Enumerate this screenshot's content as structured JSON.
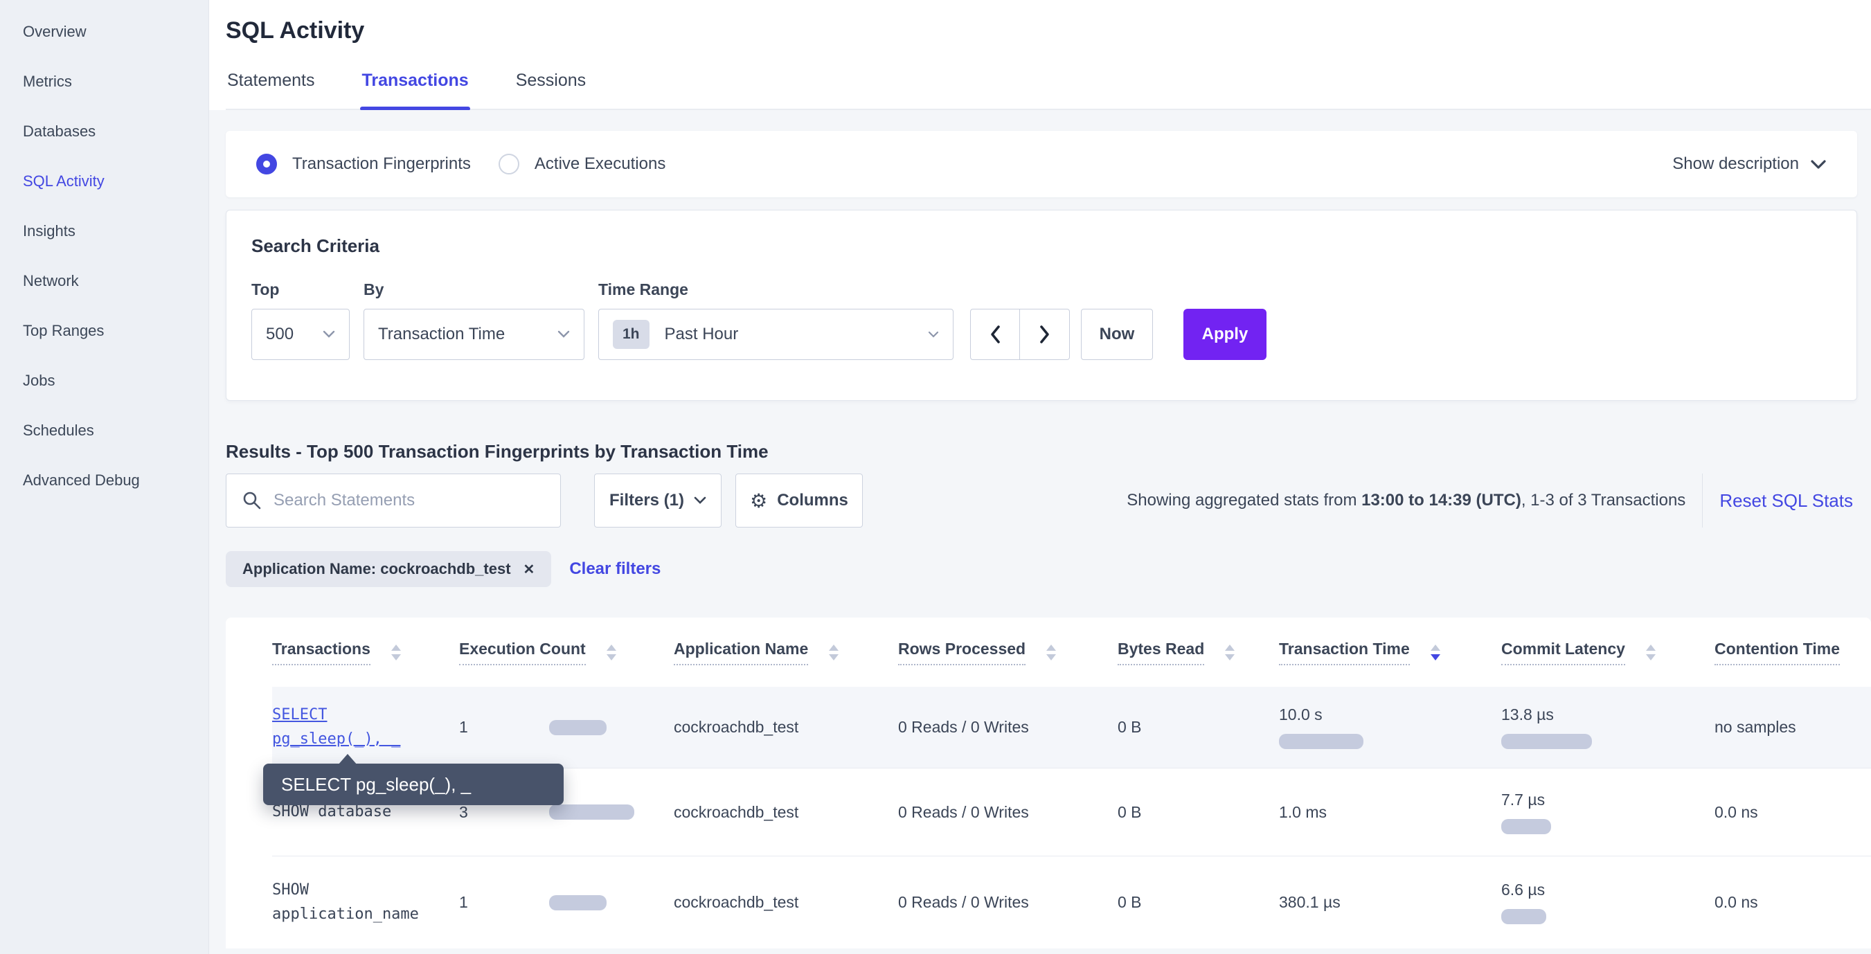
{
  "sidebar": {
    "items": [
      {
        "label": "Overview",
        "active": false
      },
      {
        "label": "Metrics",
        "active": false
      },
      {
        "label": "Databases",
        "active": false
      },
      {
        "label": "SQL Activity",
        "active": true
      },
      {
        "label": "Insights",
        "active": false
      },
      {
        "label": "Network",
        "active": false
      },
      {
        "label": "Top Ranges",
        "active": false
      },
      {
        "label": "Jobs",
        "active": false
      },
      {
        "label": "Schedules",
        "active": false
      },
      {
        "label": "Advanced Debug",
        "active": false
      }
    ]
  },
  "header": {
    "title": "SQL Activity",
    "tabs": [
      {
        "label": "Statements",
        "active": false
      },
      {
        "label": "Transactions",
        "active": true
      },
      {
        "label": "Sessions",
        "active": false
      }
    ]
  },
  "view_toggle": {
    "fingerprints_label": "Transaction Fingerprints",
    "fingerprints_selected": true,
    "active_executions_label": "Active Executions",
    "active_executions_selected": false,
    "show_description_label": "Show description"
  },
  "search_criteria": {
    "heading": "Search Criteria",
    "top": {
      "label": "Top",
      "value": "500"
    },
    "by": {
      "label": "By",
      "value": "Transaction Time"
    },
    "time_range": {
      "label": "Time Range",
      "badge": "1h",
      "value": "Past Hour"
    },
    "now_label": "Now",
    "apply_label": "Apply"
  },
  "results": {
    "heading": "Results - Top 500 Transaction Fingerprints by Transaction Time",
    "search_placeholder": "Search Statements",
    "filters_label": "Filters (1)",
    "columns_label": "Columns",
    "showing": {
      "prefix": "Showing aggregated stats from ",
      "bold": "13:00 to 14:39 (UTC)",
      "suffix": ", 1-3 of 3 Transactions"
    },
    "reset_label": "Reset SQL Stats",
    "filter_chip": "Application Name: cockroachdb_test",
    "clear_filters_label": "Clear filters"
  },
  "table": {
    "headers": [
      "Transactions",
      "Execution Count",
      "Application Name",
      "Rows Processed",
      "Bytes Read",
      "Transaction Time",
      "Commit Latency",
      "Contention Time"
    ],
    "sorted_column": "Transaction Time",
    "sort_direction": "desc",
    "rows": [
      {
        "transaction": "SELECT pg_sleep(_), _",
        "execution_count": "1",
        "app_name": "cockroachdb_test",
        "rows_processed": "0 Reads / 0 Writes",
        "bytes_read": "0 B",
        "transaction_time": "10.0 s",
        "commit_latency": "13.8 µs",
        "contention_time": "no samples",
        "bars": {
          "exec": 83,
          "txn": 122,
          "commit": 131
        }
      },
      {
        "transaction": "SHOW database",
        "execution_count": "3",
        "app_name": "cockroachdb_test",
        "rows_processed": "0 Reads / 0 Writes",
        "bytes_read": "0 B",
        "transaction_time": "1.0 ms",
        "commit_latency": "7.7 µs",
        "contention_time": "0.0 ns",
        "bars": {
          "exec": 123,
          "txn": 0,
          "commit": 72
        }
      },
      {
        "transaction": "SHOW application_name",
        "execution_count": "1",
        "app_name": "cockroachdb_test",
        "rows_processed": "0 Reads / 0 Writes",
        "bytes_read": "0 B",
        "transaction_time": "380.1 µs",
        "commit_latency": "6.6 µs",
        "contention_time": "0.0 ns",
        "bars": {
          "exec": 83,
          "txn": 0,
          "commit": 65
        }
      }
    ]
  },
  "tooltip": {
    "text": "SELECT pg_sleep(_), _"
  },
  "icons": {
    "gear": "⚙",
    "close": "✕"
  },
  "colors": {
    "accent_blue": "#4347e2",
    "apply_purple": "#7223f2",
    "link_blue": "#4356e0",
    "bar_fill": "#c5cbde",
    "tooltip_bg": "#48536a",
    "sidebar_bg": "#edf0f5",
    "page_bg": "#f4f6f9"
  }
}
